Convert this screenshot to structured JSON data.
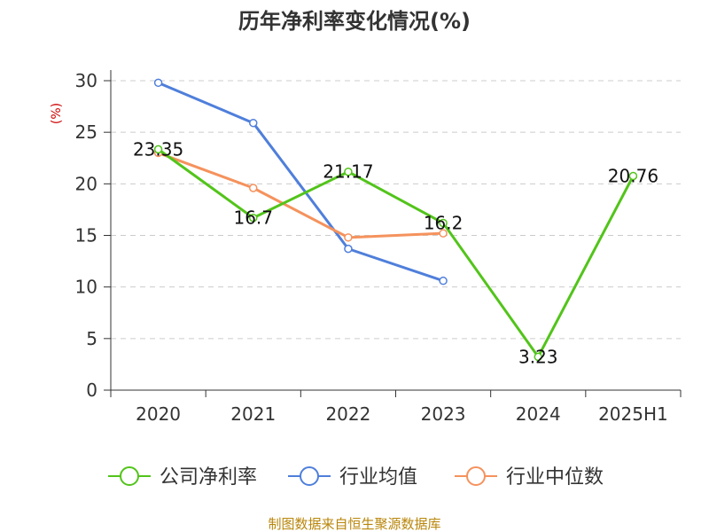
{
  "colors": {
    "company": "#52c41a",
    "industry_avg": "#4f7fdb",
    "industry_median": "#f5925d",
    "ylabel": "#cc0000",
    "source": "#b8860b",
    "grid": "#cccccc",
    "axis": "#333333"
  },
  "chart_data": {
    "type": "line",
    "title": "历年净利率变化情况(%)",
    "xlabel": "",
    "ylabel": "(%)",
    "categories": [
      "2020",
      "2021",
      "2022",
      "2023",
      "2024",
      "2025H1"
    ],
    "ylim": [
      0,
      30
    ],
    "yticks": [
      0,
      5,
      10,
      15,
      20,
      25,
      30
    ],
    "grid": "horizontal dashed",
    "legend_position": "bottom",
    "series": [
      {
        "name": "公司净利率",
        "values": [
          23.35,
          16.7,
          21.17,
          16.2,
          3.23,
          20.76
        ],
        "labels": [
          "23.35",
          "16.7",
          "21.17",
          "16.2",
          "3.23",
          "20.76"
        ]
      },
      {
        "name": "行业均值",
        "values": [
          29.8,
          25.9,
          13.7,
          10.6,
          null,
          null
        ]
      },
      {
        "name": "行业中位数",
        "values": [
          23.0,
          19.6,
          14.8,
          15.2,
          null,
          null
        ]
      }
    ]
  },
  "source_text": "制图数据来自恒生聚源数据库"
}
